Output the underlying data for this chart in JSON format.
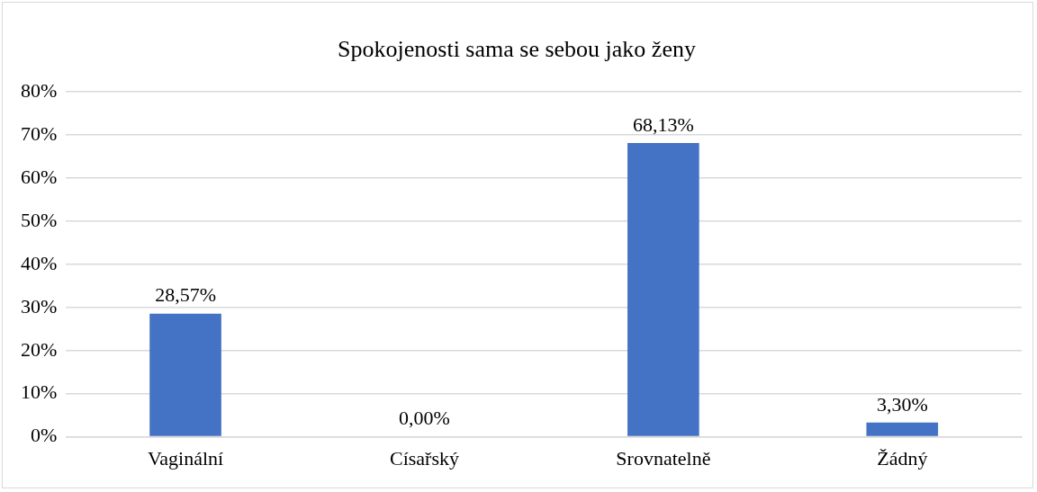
{
  "chart_data": {
    "type": "bar",
    "title": "Spokojenosti sama se sebou jako ženy",
    "categories": [
      "Vaginální",
      "Císařský",
      "Srovnatelně",
      "Žádný"
    ],
    "values": [
      28.57,
      0,
      68.13,
      3.3
    ],
    "value_labels": [
      "28,57%",
      "0,00%",
      "68,13%",
      "3,30%"
    ],
    "color": "#4472c4",
    "ylim": [
      0,
      80
    ],
    "yticks": [
      {
        "value": 0,
        "label": "0%"
      },
      {
        "value": 10,
        "label": "10%"
      },
      {
        "value": 20,
        "label": "20%"
      },
      {
        "value": 30,
        "label": "30%"
      },
      {
        "value": 40,
        "label": "40%"
      },
      {
        "value": 50,
        "label": "50%"
      },
      {
        "value": 60,
        "label": "60%"
      },
      {
        "value": 70,
        "label": "70%"
      },
      {
        "value": 80,
        "label": "80%"
      }
    ],
    "grid": "y",
    "legend": false
  }
}
